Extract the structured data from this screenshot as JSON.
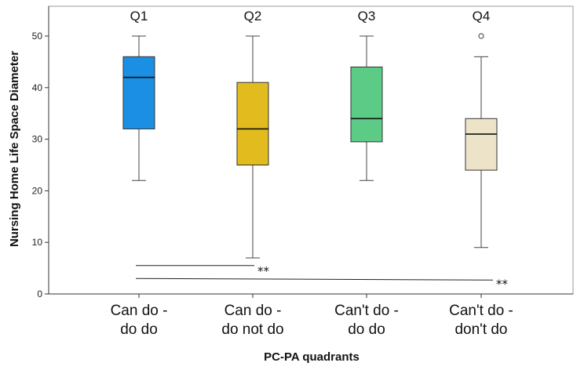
{
  "chart_data": {
    "type": "boxplot",
    "xlabel": "PC-PA quadrants",
    "ylabel": "Nursing Home Life Space Diameter",
    "ylim": [
      0,
      55
    ],
    "yticks": [
      0,
      10,
      20,
      30,
      40,
      50
    ],
    "grid": false,
    "categories": [
      {
        "label_lines": [
          "Can do -",
          "do do"
        ],
        "quadrant": "Q1",
        "color": "#1a8fe3",
        "whisker_low": 22,
        "q1": 32,
        "median": 42,
        "q3": 46,
        "whisker_high": 50,
        "outliers": []
      },
      {
        "label_lines": [
          "Can do -",
          "do not do"
        ],
        "quadrant": "Q2",
        "color": "#e2bb1e",
        "whisker_low": 7,
        "q1": 25,
        "median": 32,
        "q3": 41,
        "whisker_high": 50,
        "outliers": []
      },
      {
        "label_lines": [
          "Can't do -",
          "do do"
        ],
        "quadrant": "Q3",
        "color": "#5ccb86",
        "whisker_low": 22,
        "q1": 29.5,
        "median": 34,
        "q3": 44,
        "whisker_high": 50,
        "outliers": []
      },
      {
        "label_lines": [
          "Can't do -",
          "don't do"
        ],
        "quadrant": "Q4",
        "color": "#ede3c9",
        "whisker_low": 9,
        "q1": 24,
        "median": 31,
        "q3": 34,
        "whisker_high": 46,
        "outliers": [
          50
        ]
      }
    ],
    "significance": [
      {
        "from": 0,
        "to": 1,
        "y": 5.5,
        "label": "**"
      },
      {
        "from": 0,
        "to": 3,
        "y": 3,
        "label": "**"
      }
    ]
  }
}
